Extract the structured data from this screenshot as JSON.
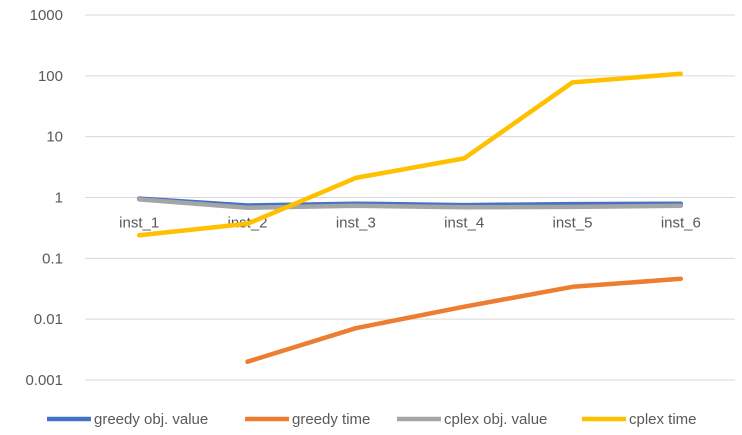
{
  "chart_data": {
    "type": "line",
    "title": "",
    "xlabel": "",
    "ylabel": "",
    "y_scale": "log",
    "ylim": [
      0.001,
      1000
    ],
    "y_ticks": [
      "1000",
      "100",
      "10",
      "1",
      "0.1",
      "0.01",
      "0.001"
    ],
    "grid": true,
    "legend_position": "bottom",
    "categories": [
      "inst_1",
      "inst_2",
      "inst_3",
      "inst_4",
      "inst_5",
      "inst_6"
    ],
    "series": [
      {
        "name": "greedy obj. value",
        "color": "#4472C4",
        "values": [
          0.96,
          0.74,
          0.79,
          0.75,
          0.78,
          0.79
        ]
      },
      {
        "name": "greedy time",
        "color": "#ED7D31",
        "values": [
          null,
          0.002,
          0.0071,
          0.016,
          0.034,
          0.046
        ]
      },
      {
        "name": "cplex obj. value",
        "color": "#A5A5A5",
        "values": [
          0.93,
          0.68,
          0.73,
          0.69,
          0.7,
          0.73
        ]
      },
      {
        "name": "cplex time",
        "color": "#FFC000",
        "values": [
          0.24,
          0.37,
          2.1,
          4.4,
          78,
          108
        ]
      }
    ]
  }
}
